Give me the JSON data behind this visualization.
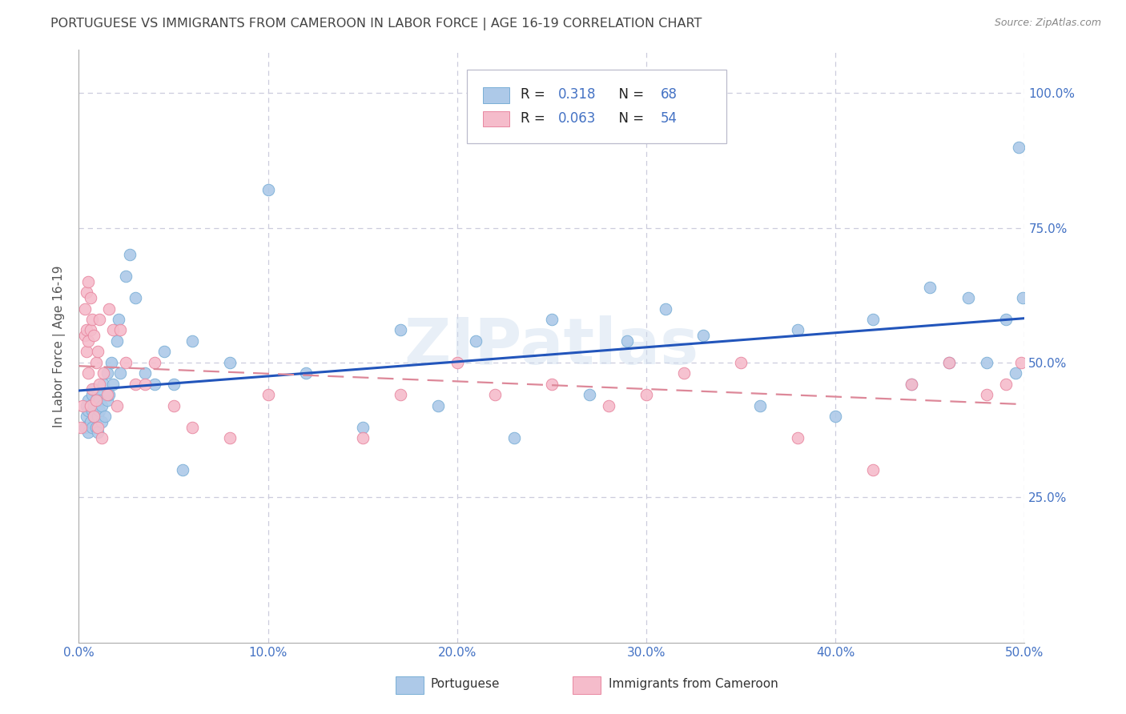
{
  "title": "PORTUGUESE VS IMMIGRANTS FROM CAMEROON IN LABOR FORCE | AGE 16-19 CORRELATION CHART",
  "source": "Source: ZipAtlas.com",
  "ylabel": "In Labor Force | Age 16-19",
  "xlim": [
    0.0,
    0.5
  ],
  "ylim": [
    -0.02,
    1.08
  ],
  "blue_R": 0.318,
  "blue_N": 68,
  "pink_R": 0.063,
  "pink_N": 54,
  "blue_color": "#adc9e8",
  "blue_edge": "#7aafd6",
  "pink_color": "#f5bccb",
  "pink_edge": "#e887a0",
  "blue_line_color": "#2255bb",
  "pink_line_color": "#dd8899",
  "watermark": "ZIPatlas",
  "legend_label_blue": "Portuguese",
  "legend_label_pink": "Immigrants from Cameroon",
  "background_color": "#ffffff",
  "grid_color": "#ccccdd",
  "title_color": "#444444",
  "tick_color": "#4472c4",
  "rn_color": "#4472c4",
  "label_color": "#333333",
  "blue_x": [
    0.003,
    0.004,
    0.004,
    0.005,
    0.005,
    0.005,
    0.006,
    0.006,
    0.007,
    0.007,
    0.007,
    0.008,
    0.008,
    0.008,
    0.009,
    0.009,
    0.01,
    0.01,
    0.01,
    0.011,
    0.011,
    0.012,
    0.012,
    0.013,
    0.014,
    0.015,
    0.015,
    0.016,
    0.017,
    0.018,
    0.02,
    0.021,
    0.022,
    0.025,
    0.027,
    0.03,
    0.035,
    0.04,
    0.045,
    0.05,
    0.055,
    0.06,
    0.08,
    0.1,
    0.12,
    0.15,
    0.17,
    0.19,
    0.21,
    0.23,
    0.25,
    0.27,
    0.29,
    0.31,
    0.33,
    0.36,
    0.38,
    0.4,
    0.42,
    0.44,
    0.45,
    0.46,
    0.47,
    0.48,
    0.49,
    0.495,
    0.497,
    0.499
  ],
  "blue_y": [
    0.38,
    0.4,
    0.42,
    0.37,
    0.41,
    0.43,
    0.39,
    0.42,
    0.38,
    0.41,
    0.44,
    0.4,
    0.42,
    0.45,
    0.38,
    0.43,
    0.37,
    0.4,
    0.44,
    0.41,
    0.43,
    0.39,
    0.42,
    0.46,
    0.4,
    0.43,
    0.48,
    0.44,
    0.5,
    0.46,
    0.54,
    0.58,
    0.48,
    0.66,
    0.7,
    0.62,
    0.48,
    0.46,
    0.52,
    0.46,
    0.3,
    0.54,
    0.5,
    0.82,
    0.48,
    0.38,
    0.56,
    0.42,
    0.54,
    0.36,
    0.58,
    0.44,
    0.54,
    0.6,
    0.55,
    0.42,
    0.56,
    0.4,
    0.58,
    0.46,
    0.64,
    0.5,
    0.62,
    0.5,
    0.58,
    0.48,
    0.9,
    0.62
  ],
  "pink_x": [
    0.001,
    0.002,
    0.003,
    0.003,
    0.004,
    0.004,
    0.004,
    0.005,
    0.005,
    0.005,
    0.006,
    0.006,
    0.006,
    0.007,
    0.007,
    0.008,
    0.008,
    0.009,
    0.009,
    0.01,
    0.01,
    0.011,
    0.011,
    0.012,
    0.013,
    0.015,
    0.016,
    0.018,
    0.02,
    0.022,
    0.025,
    0.03,
    0.035,
    0.04,
    0.05,
    0.06,
    0.08,
    0.1,
    0.15,
    0.17,
    0.2,
    0.22,
    0.25,
    0.28,
    0.3,
    0.32,
    0.35,
    0.38,
    0.42,
    0.44,
    0.46,
    0.48,
    0.49,
    0.498
  ],
  "pink_y": [
    0.38,
    0.42,
    0.55,
    0.6,
    0.52,
    0.56,
    0.63,
    0.48,
    0.54,
    0.65,
    0.42,
    0.56,
    0.62,
    0.45,
    0.58,
    0.4,
    0.55,
    0.43,
    0.5,
    0.38,
    0.52,
    0.46,
    0.58,
    0.36,
    0.48,
    0.44,
    0.6,
    0.56,
    0.42,
    0.56,
    0.5,
    0.46,
    0.46,
    0.5,
    0.42,
    0.38,
    0.36,
    0.44,
    0.36,
    0.44,
    0.5,
    0.44,
    0.46,
    0.42,
    0.44,
    0.48,
    0.5,
    0.36,
    0.3,
    0.46,
    0.5,
    0.44,
    0.46,
    0.5
  ]
}
